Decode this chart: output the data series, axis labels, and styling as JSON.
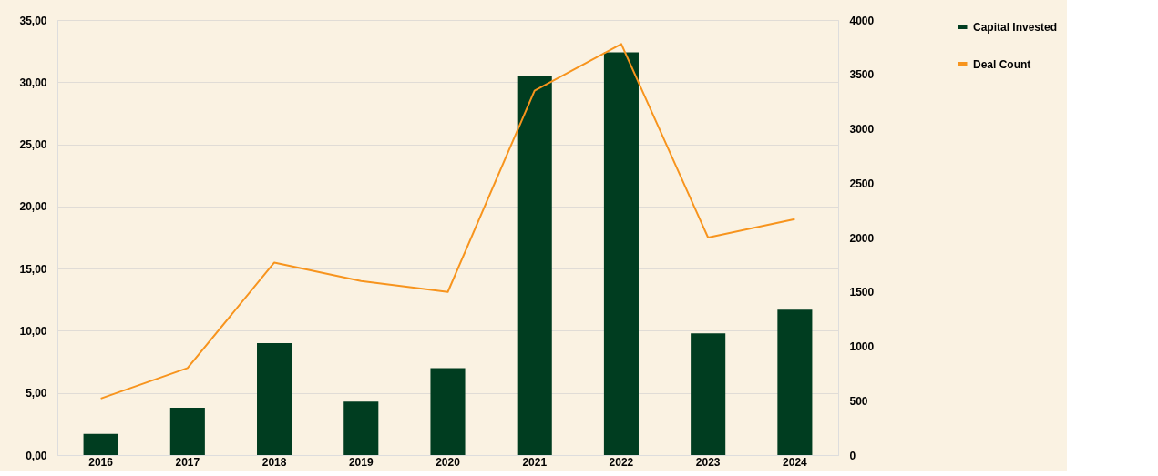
{
  "chart_data": {
    "type": "bar",
    "categories": [
      "2016",
      "2017",
      "2018",
      "2019",
      "2020",
      "2021",
      "2022",
      "2023",
      "2024"
    ],
    "series": [
      {
        "name": "Capital Invested",
        "color": "#003d20",
        "values": [
          1.7,
          3.8,
          9.0,
          4.3,
          7.0,
          30.5,
          32.4,
          9.8,
          11.7
        ]
      },
      {
        "name": "Deal Count",
        "type": "line",
        "axis": "y2",
        "color": "#f7941d",
        "values": [
          520,
          800,
          1770,
          1600,
          1500,
          3350,
          3780,
          2000,
          2170
        ]
      }
    ],
    "ylim": [
      0,
      35
    ],
    "yticks": [
      {
        "value": 0,
        "label": "0,00"
      },
      {
        "value": 5,
        "label": "5,00"
      },
      {
        "value": 10,
        "label": "10,00"
      },
      {
        "value": 15,
        "label": "15,00"
      },
      {
        "value": 20,
        "label": "20,00"
      },
      {
        "value": 25,
        "label": "25,00"
      },
      {
        "value": 30,
        "label": "30,00"
      },
      {
        "value": 35,
        "label": "35,00"
      }
    ],
    "y2lim": [
      0,
      4000
    ],
    "y2ticks": [
      0,
      500,
      1000,
      1500,
      2000,
      2500,
      3000,
      3500,
      4000
    ],
    "grid": "y",
    "legend": "right",
    "marker": "none",
    "line_style": "solid"
  }
}
